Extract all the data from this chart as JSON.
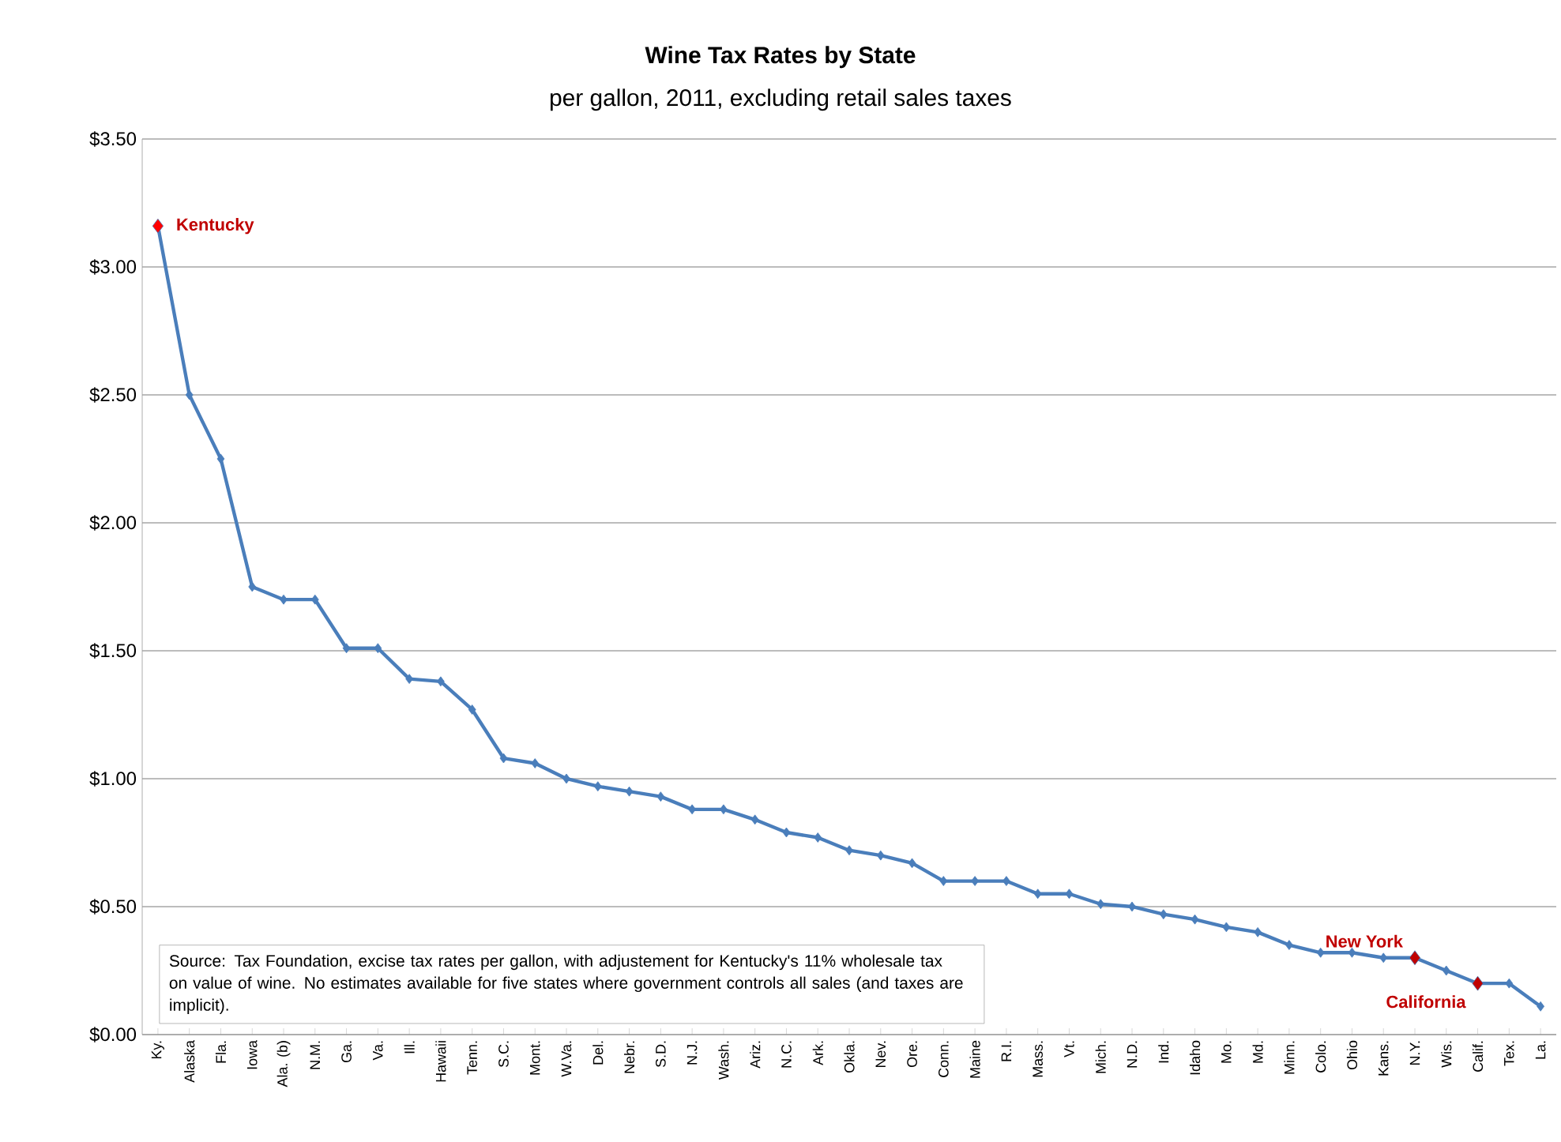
{
  "chart_data": {
    "type": "line",
    "title": "Wine Tax Rates by State",
    "subtitle": "per gallon, 2011, excluding retail sales taxes",
    "categories": [
      "Ky.",
      "Alaska",
      "Fla.",
      "Iowa",
      "Ala. (b)",
      "N.M.",
      "Ga.",
      "Va.",
      "Ill.",
      "Hawaii",
      "Tenn.",
      "S.C.",
      "Mont.",
      "W.Va.",
      "Del.",
      "Nebr.",
      "S.D.",
      "N.J.",
      "Wash.",
      "Ariz.",
      "N.C.",
      "Ark.",
      "Okla.",
      "Nev.",
      "Ore.",
      "Conn.",
      "Maine",
      "R.I.",
      "Mass.",
      "Vt.",
      "Mich.",
      "N.D.",
      "Ind.",
      "Idaho",
      "Mo.",
      "Md.",
      "Minn.",
      "Colo.",
      "Ohio",
      "Kans.",
      "N.Y.",
      "Wis.",
      "Calif.",
      "Tex.",
      "La."
    ],
    "series": [
      {
        "color": "#4a7ebb",
        "values": [
          3.16,
          2.5,
          2.25,
          1.75,
          1.7,
          1.7,
          1.51,
          1.51,
          1.39,
          1.38,
          1.27,
          1.08,
          1.06,
          1.0,
          0.97,
          0.95,
          0.93,
          0.88,
          0.88,
          0.84,
          0.79,
          0.77,
          0.72,
          0.7,
          0.67,
          0.6,
          0.6,
          0.6,
          0.55,
          0.55,
          0.51,
          0.5,
          0.47,
          0.45,
          0.42,
          0.4,
          0.35,
          0.32,
          0.32,
          0.3,
          0.3,
          0.25,
          0.2,
          0.2,
          0.11
        ],
        "colors": [
          "#ff0000",
          "#4a7ebb",
          "#4a7ebb",
          "#4a7ebb",
          "#4a7ebb",
          "#4a7ebb",
          "#4a7ebb",
          "#4a7ebb",
          "#4a7ebb",
          "#4a7ebb",
          "#4a7ebb",
          "#4a7ebb",
          "#4a7ebb",
          "#4a7ebb",
          "#4a7ebb",
          "#4a7ebb",
          "#4a7ebb",
          "#4a7ebb",
          "#4a7ebb",
          "#4a7ebb",
          "#4a7ebb",
          "#4a7ebb",
          "#4a7ebb",
          "#4a7ebb",
          "#4a7ebb",
          "#4a7ebb",
          "#4a7ebb",
          "#4a7ebb",
          "#4a7ebb",
          "#4a7ebb",
          "#4a7ebb",
          "#4a7ebb",
          "#4a7ebb",
          "#4a7ebb",
          "#4a7ebb",
          "#4a7ebb",
          "#4a7ebb",
          "#4a7ebb",
          "#4a7ebb",
          "#4a7ebb",
          "#c00000",
          "#4a7ebb",
          "#c00000",
          "#4a7ebb",
          "#4a7ebb"
        ]
      }
    ],
    "ylim": [
      0,
      3.5
    ],
    "yticks": [
      {
        "value": 0,
        "label": "$0.00"
      },
      {
        "value": 0.5,
        "label": "$0.50"
      },
      {
        "value": 1,
        "label": "$1.00"
      },
      {
        "value": 1.5,
        "label": "$1.50"
      },
      {
        "value": 2,
        "label": "$2.00"
      },
      {
        "value": 2.5,
        "label": "$2.50"
      },
      {
        "value": 3,
        "label": "$3.00"
      },
      {
        "value": 3.5,
        "label": "$3.50"
      }
    ],
    "grid": "y",
    "marker": "diamond",
    "line_style": "solid",
    "annotations": [
      "Source: Tax Foundation, excise tax rates per gallon, with adjustement for Kentucky's 11% wholesale tax on value of wine. No estimates available for five states where government controls all sales (and taxes are implicit).",
      {
        "text": "Kentucky",
        "x": "Ky.",
        "y": 3.16
      },
      {
        "text": "New York",
        "x": "N.Y.",
        "y": 0.3
      },
      {
        "text": "California",
        "x": "Calif.",
        "y": 0.2
      }
    ]
  }
}
